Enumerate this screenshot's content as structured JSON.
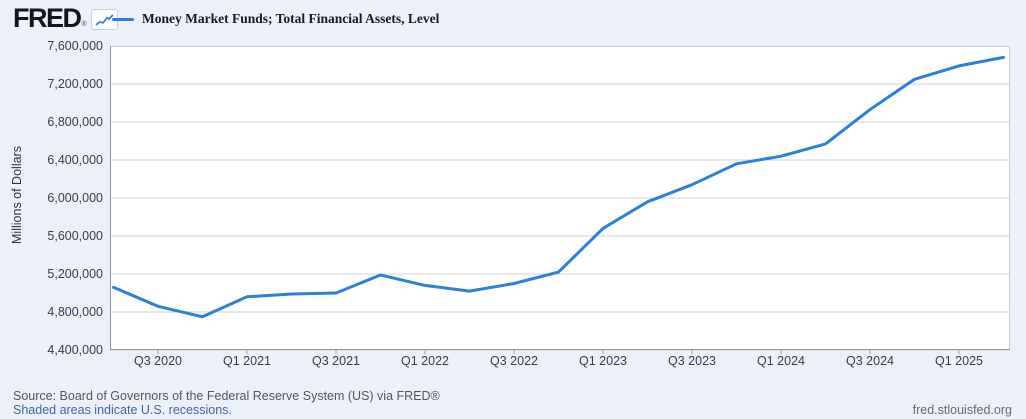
{
  "header": {
    "logo_text": "FRED",
    "logo_reg": "®",
    "logo_icon": "fred-sparkline-icon"
  },
  "chart_data": {
    "type": "line",
    "title": "Money Market Funds; Total Financial Assets, Level",
    "xlabel": "",
    "ylabel": "Millions of Dollars",
    "x": [
      "2020 Q2",
      "2020 Q3",
      "2020 Q4",
      "2021 Q1",
      "2021 Q2",
      "2021 Q3",
      "2021 Q4",
      "2022 Q1",
      "2022 Q2",
      "2022 Q3",
      "2022 Q4",
      "2023 Q1",
      "2023 Q2",
      "2023 Q3",
      "2023 Q4",
      "2024 Q1",
      "2024 Q2",
      "2024 Q3",
      "2024 Q4",
      "2025 Q1",
      "2025 Q2"
    ],
    "values": [
      5060000,
      4860000,
      4750000,
      4960000,
      4990000,
      5000000,
      5190000,
      5080000,
      5020000,
      5100000,
      5220000,
      5680000,
      5960000,
      6140000,
      6360000,
      6440000,
      6570000,
      6930000,
      7250000,
      7390000,
      7480000
    ],
    "ylim": [
      4400000,
      7600000
    ],
    "ytick_step": 400000,
    "ytick_labels": [
      "7,600,000",
      "7,200,000",
      "6,800,000",
      "6,400,000",
      "6,000,000",
      "5,600,000",
      "5,200,000",
      "4,800,000",
      "4,400,000"
    ],
    "xtick_labels": [
      "Q3 2020",
      "Q1 2021",
      "Q3 2021",
      "Q1 2022",
      "Q3 2022",
      "Q1 2023",
      "Q3 2023",
      "Q1 2024",
      "Q3 2024",
      "Q1 2025"
    ],
    "grid": "horizontal",
    "legend_position": "top-left",
    "line_color": "#2f7ed8"
  },
  "footer": {
    "source_line": "Source: Board of Governors of the Federal Reserve System (US) via FRED®",
    "recession_note": "Shaded areas indicate U.S. recessions.",
    "site_link": "fred.stlouisfed.org"
  }
}
